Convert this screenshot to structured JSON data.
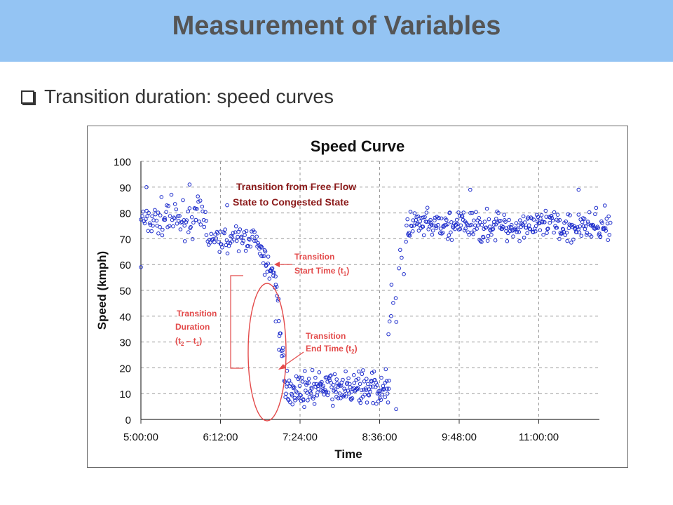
{
  "slide": {
    "title": "Measurement of Variables",
    "bullet": "Transition duration: speed curves"
  },
  "chart_data": {
    "type": "scatter",
    "title": "Speed Curve",
    "xlabel": "Time",
    "ylabel": "Speed (kmph)",
    "x_ticks": [
      "5:00:00",
      "6:12:00",
      "7:24:00",
      "8:36:00",
      "9:48:00",
      "11:00:00"
    ],
    "y_ticks": [
      0,
      10,
      20,
      30,
      40,
      50,
      60,
      70,
      80,
      90,
      100
    ],
    "xlim": [
      "5:00:00",
      "12:10:00"
    ],
    "ylim": [
      0,
      100
    ],
    "grid": true,
    "marker_color": "#1f2ecc",
    "annotation_color": "#e34a4a",
    "annotations": {
      "headline_line1": "Transition from Free Flow",
      "headline_line2": "State to Congested State",
      "start_line1": "Transition",
      "start_line2": "Start Time (t",
      "start_sub": "1",
      "end_line1": "Transition",
      "end_line2": "End Time (t",
      "end_sub": "2",
      "dur_line1": "Transition",
      "dur_line2": "Duration",
      "dur_line3_a": "(t",
      "dur_sub2": "2",
      "dur_line3_b": " – t",
      "dur_sub1": "1"
    },
    "series": [
      {
        "segments": [
          {
            "start": "5:00:00",
            "end": "6:00:00",
            "mean": 78,
            "spread": 6,
            "count": 80
          },
          {
            "start": "6:00:00",
            "end": "6:45:00",
            "mean": 70,
            "spread": 4,
            "count": 60
          },
          {
            "start": "6:45:00",
            "end": "7:02:00",
            "mean": 60,
            "spread": 5,
            "count": 30
          },
          {
            "start": "7:02:00",
            "end": "7:10:00",
            "mean": 35,
            "spread": 15,
            "count": 15
          },
          {
            "start": "7:10:00",
            "end": "8:45:00",
            "mean": 12,
            "spread": 5,
            "count": 190
          },
          {
            "start": "8:45:00",
            "end": "9:00:00",
            "mean": 55,
            "spread": 25,
            "count": 10
          },
          {
            "start": "9:00:00",
            "end": "12:05:00",
            "mean": 75,
            "spread": 5,
            "count": 300
          }
        ],
        "highlights": [
          {
            "x": "5:05:00",
            "y": 90
          },
          {
            "x": "5:44:00",
            "y": 91
          },
          {
            "x": "6:18:00",
            "y": 83
          },
          {
            "x": "6:52:00",
            "y": 56
          },
          {
            "x": "7:02:00",
            "y": 38
          },
          {
            "x": "7:05:00",
            "y": 27
          },
          {
            "x": "8:44:00",
            "y": 33
          },
          {
            "x": "8:45:00",
            "y": 38
          },
          {
            "x": "8:51:00",
            "y": 4
          },
          {
            "x": "9:58:00",
            "y": 89
          },
          {
            "x": "11:36:00",
            "y": 89
          },
          {
            "x": "5:00:00",
            "y": 59
          }
        ]
      }
    ]
  }
}
